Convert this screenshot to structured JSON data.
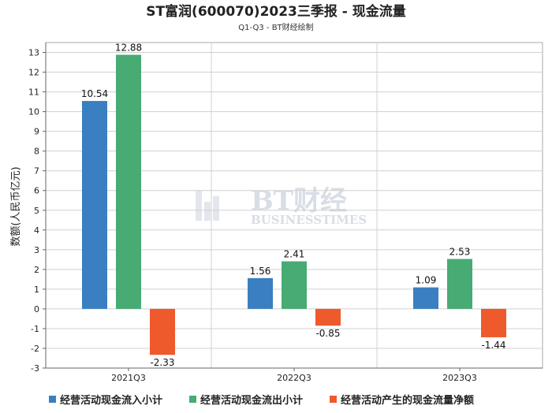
{
  "chart_data": {
    "type": "bar",
    "title": "ST富润(600070)2023三季报 - 现金流量",
    "subtitle": "Q1-Q3 - BT财经绘制",
    "ylabel": "数额(人民币亿元)",
    "xlabel": "",
    "categories": [
      "2021Q3",
      "2022Q3",
      "2023Q3"
    ],
    "ylim": [
      -3,
      13.5
    ],
    "yticks": [
      -3,
      -2,
      -1,
      0,
      1,
      2,
      3,
      4,
      5,
      6,
      7,
      8,
      9,
      10,
      11,
      12,
      13
    ],
    "grid": true,
    "legend_position": "bottom",
    "series": [
      {
        "name": "经营活动现金流入小计",
        "color": "#3a7fc1",
        "values": [
          10.54,
          1.56,
          1.09
        ],
        "labels": [
          "10.54",
          "1.56",
          "1.09"
        ]
      },
      {
        "name": "经营活动现金流出小计",
        "color": "#47ab73",
        "values": [
          12.88,
          2.41,
          2.53
        ],
        "labels": [
          "12.88",
          "2.41",
          "2.53"
        ]
      },
      {
        "name": "经营活动产生的现金流量净额",
        "color": "#ee5a2b",
        "values": [
          -2.33,
          -0.85,
          -1.44
        ],
        "labels": [
          "-2.33",
          "-0.85",
          "-1.44"
        ]
      }
    ]
  },
  "watermark": {
    "brand": "BT财经",
    "text": "BUSINESSTIMES"
  }
}
